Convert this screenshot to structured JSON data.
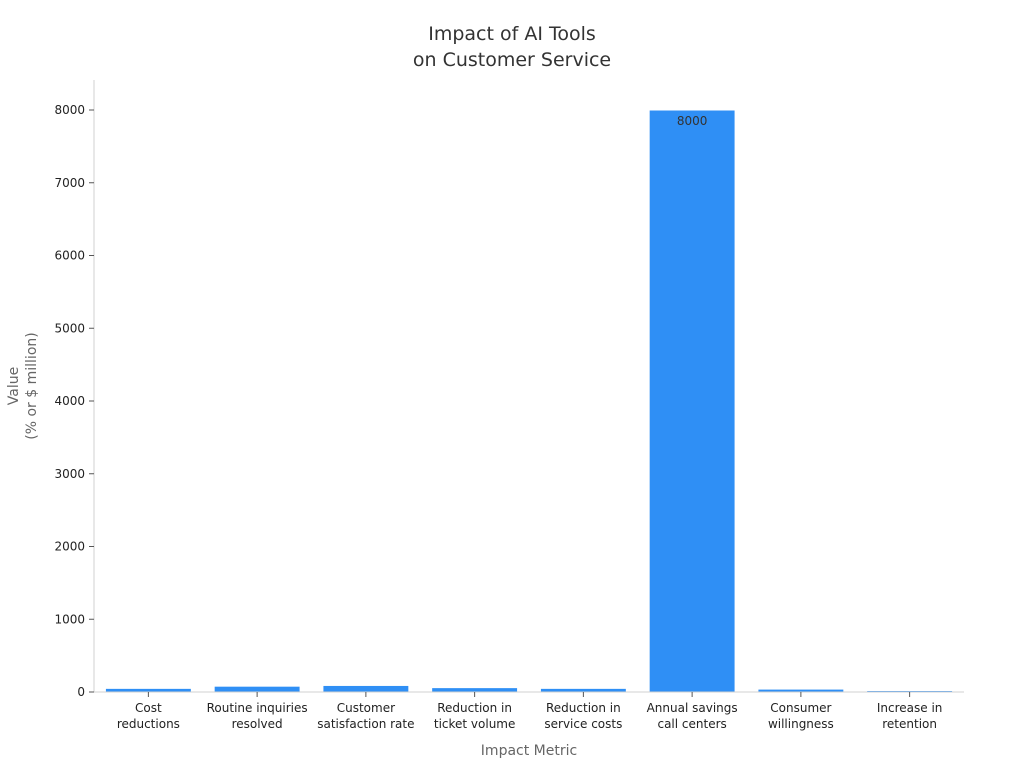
{
  "chart_data": {
    "type": "bar",
    "title": [
      "Impact of AI Tools",
      "on Customer Service"
    ],
    "xlabel": "Impact Metric",
    "ylabel": [
      "Value",
      "(% or $ million)"
    ],
    "categories": [
      [
        "Cost",
        "reductions"
      ],
      [
        "Routine inquiries",
        "resolved"
      ],
      [
        "Customer",
        "satisfaction rate"
      ],
      [
        "Reduction in",
        "ticket volume"
      ],
      [
        "Reduction in",
        "service costs"
      ],
      [
        "Annual savings",
        "call centers"
      ],
      [
        "Consumer",
        "willingness"
      ],
      [
        "Increase in",
        "retention"
      ]
    ],
    "values": [
      50,
      80,
      90,
      60,
      50,
      8000,
      40,
      20
    ],
    "data_labels": [
      "",
      "",
      "",
      "",
      "",
      "8000",
      "",
      ""
    ],
    "yticks": [
      0,
      1000,
      2000,
      3000,
      4000,
      5000,
      6000,
      7000,
      8000
    ],
    "ylim": [
      0,
      8400
    ],
    "bar_color": "#2f8ff5",
    "grid": false,
    "legend": "none"
  }
}
